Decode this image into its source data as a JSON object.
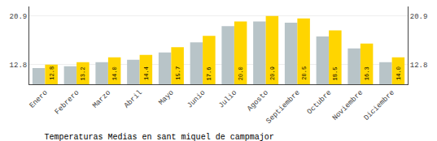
{
  "chart_data": {
    "type": "bar",
    "title": "Temperaturas Medias en sant miquel de campmajor",
    "categories": [
      "Enero",
      "Febrero",
      "Marzo",
      "Abril",
      "Mayo",
      "Junio",
      "Julio",
      "Agosto",
      "Septiembre",
      "Octubre",
      "Noviembre",
      "Diciembre"
    ],
    "series": [
      {
        "color": "#B8C4C8",
        "values": [
          12.2,
          12.5,
          13.2,
          13.6,
          14.8,
          16.5,
          19.2,
          20.0,
          19.8,
          17.5,
          15.5,
          13.2
        ]
      },
      {
        "color": "#FFD500",
        "values": [
          12.8,
          13.2,
          14.0,
          14.4,
          15.7,
          17.6,
          20.0,
          20.9,
          20.5,
          18.5,
          16.3,
          14.0
        ],
        "data_labels": true,
        "value_labels": [
          "12.8",
          "13.2",
          "14.0",
          "14.4",
          "15.7",
          "17.6",
          "20.0",
          "20.9",
          "20.5",
          "18.5",
          "16.3",
          "14.0"
        ]
      }
    ],
    "ylim": [
      9.5,
      22.5
    ],
    "yticks": [
      12.8,
      20.9
    ],
    "y2lim": [
      9.5,
      22.5
    ],
    "y2ticks": [
      12.8,
      20.9
    ],
    "grid": true
  }
}
